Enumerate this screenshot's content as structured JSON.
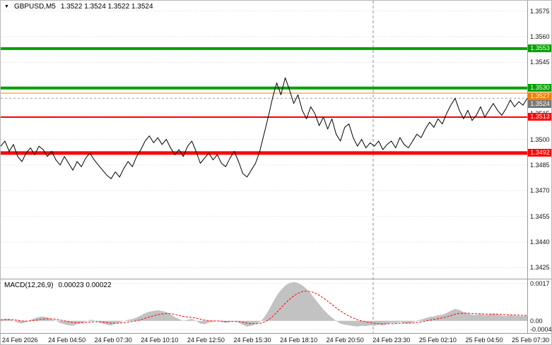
{
  "header": {
    "collapse_icon": "▼",
    "symbol": "GBPUSD,M5",
    "ohlc": "1.3522 1.3524 1.3522 1.3524"
  },
  "macd_panel": {
    "label": "MACD(12,26,9)",
    "values": "0.00023 0.00022"
  },
  "chart_data": [
    {
      "type": "line",
      "title": "GBPUSD,M5",
      "pair": "GBPUSD",
      "timeframe": "M5",
      "open": "1.3522",
      "high": "1.3524",
      "low": "1.3522",
      "close": "1.3524",
      "grid": "horizontal-dotted",
      "legend": "none",
      "ylim": [
        1.3419,
        1.3581
      ],
      "yticks": [
        {
          "value": 1.3575,
          "label": "1.3575"
        },
        {
          "value": 1.356,
          "label": "1.3560"
        },
        {
          "value": 1.3545,
          "label": "1.3545"
        },
        {
          "value": 1.353,
          "label": "1.3530"
        },
        {
          "value": 1.3515,
          "label": "1.3515"
        },
        {
          "value": 1.35,
          "label": "1.3500"
        },
        {
          "value": 1.3485,
          "label": "1.3485"
        },
        {
          "value": 1.347,
          "label": "1.3470"
        },
        {
          "value": 1.3455,
          "label": "1.3455"
        },
        {
          "value": 1.344,
          "label": "1.3440"
        },
        {
          "value": 1.3425,
          "label": "1.3425"
        }
      ],
      "x_labels": [
        "24 Feb 2026",
        "24 Feb 04:50",
        "24 Feb 07:30",
        "24 Feb 10:10",
        "24 Feb 12:50",
        "24 Feb 15:30",
        "24 Feb 18:10",
        "24 Feb 20:50",
        "24 Feb 23:30",
        "25 Feb 02:10",
        "25 Feb 04:50",
        "25 Feb 07:30"
      ],
      "day_separator_fraction": 0.7074,
      "levels": [
        {
          "label": "1.3553",
          "value": 1.3553,
          "color": "#00A000",
          "thickness": 4,
          "role": "resistance"
        },
        {
          "label": "1.3530",
          "value": 1.353,
          "color": "#00A000",
          "thickness": 4,
          "role": "resistance"
        },
        {
          "label": "1.3527",
          "value": 1.3527,
          "color": "#F08000",
          "thickness": 1,
          "role": "pivot"
        },
        {
          "label": "1.3513",
          "value": 1.3513,
          "color": "#FF0000",
          "thickness": 2,
          "role": "support"
        },
        {
          "label": "1.3492",
          "value": 1.3492,
          "color": "#FF0000",
          "thickness": 5,
          "role": "support"
        }
      ],
      "current_price": {
        "label": "1.3524",
        "value": 1.3524,
        "color": "#787878"
      },
      "series": [
        {
          "name": "bid",
          "color": "#000000",
          "values": [
            1.3496,
            1.3499,
            1.3493,
            1.3497,
            1.349,
            1.3487,
            1.3492,
            1.3495,
            1.3491,
            1.3496,
            1.3494,
            1.349,
            1.3493,
            1.3488,
            1.3485,
            1.349,
            1.3486,
            1.3482,
            1.3487,
            1.3484,
            1.3489,
            1.3492,
            1.3488,
            1.3485,
            1.3482,
            1.3479,
            1.3477,
            1.3481,
            1.3478,
            1.3483,
            1.3487,
            1.3484,
            1.349,
            1.3494,
            1.3499,
            1.3502,
            1.3498,
            1.3501,
            1.3497,
            1.35,
            1.3495,
            1.3491,
            1.3494,
            1.349,
            1.3496,
            1.3499,
            1.3493,
            1.3486,
            1.3489,
            1.3492,
            1.3488,
            1.3491,
            1.3486,
            1.3484,
            1.3489,
            1.3493,
            1.3487,
            1.348,
            1.3478,
            1.3482,
            1.3486,
            1.3493,
            1.3503,
            1.3513,
            1.3524,
            1.3533,
            1.3526,
            1.3536,
            1.3529,
            1.3521,
            1.3526,
            1.3517,
            1.3512,
            1.3519,
            1.3515,
            1.3508,
            1.3513,
            1.3506,
            1.3512,
            1.3503,
            1.3499,
            1.3507,
            1.3509,
            1.3501,
            1.3496,
            1.35,
            1.3495,
            1.3498,
            1.3496,
            1.3499,
            1.3494,
            1.3497,
            1.3499,
            1.3495,
            1.3501,
            1.3497,
            1.3495,
            1.3499,
            1.3503,
            1.3501,
            1.3506,
            1.351,
            1.3507,
            1.3512,
            1.3509,
            1.3515,
            1.352,
            1.3524,
            1.3517,
            1.3512,
            1.3517,
            1.3511,
            1.3514,
            1.3519,
            1.3513,
            1.3517,
            1.3521,
            1.3517,
            1.3514,
            1.3518,
            1.3523,
            1.3519,
            1.3522,
            1.352,
            1.3524
          ]
        }
      ]
    },
    {
      "type": "area",
      "title": "MACD(12,26,9)",
      "macd_value": "0.00023",
      "signal_value": "0.00022",
      "ylim": [
        -0.00055,
        0.00185
      ],
      "yticks": [
        {
          "value": 0.0017,
          "label": "0.0017"
        },
        {
          "value": 0,
          "label": "0.00"
        },
        {
          "value": -0.0004,
          "label": "-0.0004"
        }
      ],
      "series": [
        {
          "name": "MACD",
          "style": "histogram",
          "color": "#C2C2C2",
          "values": [
            5e-05,
            0.0001,
            8e-05,
            0.0,
            -8e-05,
            -0.00012,
            -5e-05,
            5e-05,
            0.00012,
            0.00018,
            0.0002,
            0.00015,
            8e-05,
            0.0,
            -0.0001,
            -0.00015,
            -0.0002,
            -0.00022,
            -0.00015,
            -0.0001,
            -3e-05,
            5e-05,
            3e-05,
            -5e-05,
            -0.00012,
            -0.00018,
            -0.0002,
            -0.00012,
            -8e-05,
            0.0,
            5e-05,
            8e-05,
            0.00015,
            0.00025,
            0.00035,
            0.00042,
            0.00045,
            0.00048,
            0.00045,
            0.0004,
            0.0003,
            0.00018,
            8e-05,
            0.0,
            5e-05,
            0.0001,
            0.0,
            -0.00012,
            -0.00015,
            -8e-05,
            -5e-05,
            0.0,
            -5e-05,
            -0.0001,
            -5e-05,
            2e-05,
            -8e-05,
            -0.00018,
            -0.00026,
            -0.00022,
            -0.00015,
            -5e-05,
            0.00015,
            0.00045,
            0.0008,
            0.00115,
            0.0014,
            0.0016,
            0.00172,
            0.00176,
            0.00172,
            0.00162,
            0.00145,
            0.00125,
            0.001,
            0.00075,
            0.00052,
            0.00032,
            0.00015,
            0.0,
            -0.00012,
            -0.00018,
            -0.0002,
            -0.00024,
            -0.00026,
            -0.00022,
            -0.00024,
            -0.0002,
            -0.00022,
            -0.00018,
            -0.0002,
            -0.00014,
            -8e-05,
            -0.0001,
            -4e-05,
            -0.0001,
            -0.00012,
            -6e-05,
            2e-05,
            6e-05,
            0.00012,
            0.00018,
            0.0002,
            0.00026,
            0.00028,
            0.00036,
            0.00046,
            0.00054,
            0.0005,
            0.0004,
            0.00034,
            0.00028,
            0.00027,
            0.00031,
            0.00027,
            0.00029,
            0.00033,
            0.00029,
            0.00024,
            0.00022,
            0.00026,
            0.00024,
            0.00022,
            0.00021,
            0.00023
          ]
        },
        {
          "name": "Signal",
          "style": "dashed-line",
          "color": "#FF0000",
          "derived": "ema9-of-MACD"
        }
      ]
    }
  ]
}
